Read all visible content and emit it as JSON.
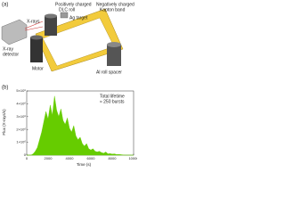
{
  "diagram": {
    "panel": "(a)",
    "labels": {
      "positive": [
        "Positively charged",
        "DLC roll"
      ],
      "target": "Ag target",
      "negative": [
        "Negatively charged",
        "Kapton band"
      ],
      "detector": [
        "X-ray",
        "detector"
      ],
      "xrays": "X-rays",
      "motor": "Motor",
      "spacer": "Al roll spacer"
    }
  },
  "chart_data": {
    "type": "area",
    "panel": "(b)",
    "annotation": [
      "Total lifetime",
      "≈ 250 bursts"
    ],
    "x_label": "Time (s)",
    "y_label": "Flux (X-rays/s)",
    "color": "#66cc00",
    "x": [
      0,
      200,
      400,
      600,
      800,
      1000,
      1200,
      1400,
      1600,
      1800,
      2000,
      2200,
      2400,
      2600,
      2800,
      3000,
      3200,
      3400,
      3600,
      3800,
      4000,
      4200,
      4400,
      4600,
      4800,
      5000,
      5200,
      5400,
      5600,
      5800,
      6000,
      6200,
      6400,
      6600,
      6800,
      7000,
      7200,
      7400,
      7600,
      7800,
      8000,
      8200,
      8400,
      8600,
      8800,
      9000,
      9200,
      9400,
      9600,
      9800,
      10000
    ],
    "values": [
      0,
      0,
      0,
      100000,
      300000,
      600000,
      1200000,
      1800000,
      2600000,
      3400000,
      2800000,
      3900000,
      3100000,
      4600000,
      3500000,
      3000000,
      3600000,
      2700000,
      2400000,
      2900000,
      2100000,
      1800000,
      2300000,
      1500000,
      1200000,
      1400000,
      900000,
      700000,
      900000,
      500000,
      400000,
      500000,
      300000,
      250000,
      300000,
      200000,
      150000,
      250000,
      100000,
      120000,
      80000,
      100000,
      50000,
      60000,
      40000,
      20000,
      0,
      0,
      0,
      0,
      0
    ],
    "xlim": [
      0,
      10000
    ],
    "xticks": [
      0,
      2000,
      4000,
      6000,
      8000,
      10000
    ],
    "ylim": [
      0,
      5000000
    ],
    "yticks": [
      0,
      {
        "value": 1000000,
        "label": "1×10⁶"
      },
      {
        "value": 2000000,
        "label": "2×10⁶"
      },
      {
        "value": 3000000,
        "label": "3×10⁶"
      },
      {
        "value": 4000000,
        "label": "4×10⁶"
      },
      {
        "value": 5000000,
        "label": "5×10⁶"
      }
    ]
  }
}
